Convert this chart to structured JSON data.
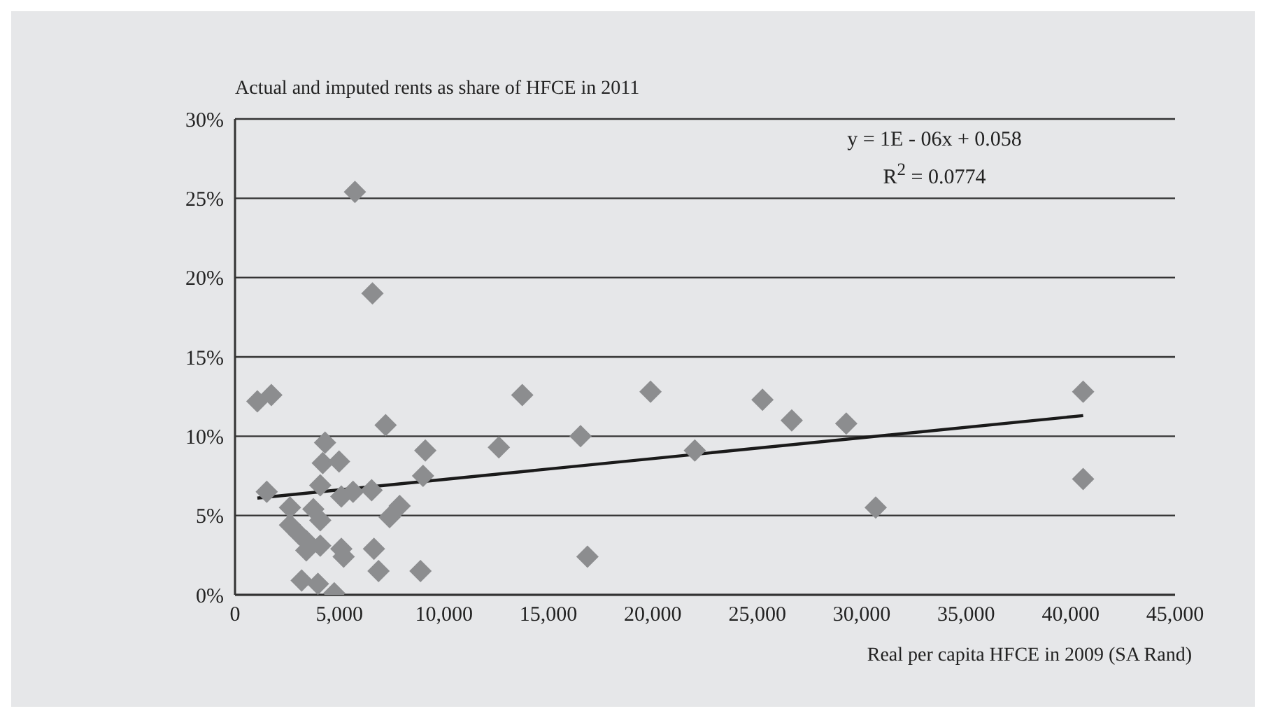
{
  "chart_data": {
    "type": "scatter",
    "title": "Actual and imputed rents as share of HFCE in 2011",
    "xlabel": "Real per capita HFCE in 2009 (SA Rand)",
    "annotations": [
      "y = 1E - 06x + 0.058",
      "R$^{2}$ = 0.0774"
    ],
    "marker": "diamond",
    "grid": "y",
    "xlim": [
      0,
      45000
    ],
    "xticks": [
      0,
      {
        "value": 5000,
        "label": "5,000"
      },
      {
        "value": 10000,
        "label": "10,000"
      },
      {
        "value": 15000,
        "label": "15,000"
      },
      {
        "value": 20000,
        "label": "20,000"
      },
      {
        "value": 25000,
        "label": "25,000"
      },
      {
        "value": 30000,
        "label": "30,000"
      },
      {
        "value": 35000,
        "label": "35,000"
      },
      {
        "value": 40000,
        "label": "40,000"
      },
      {
        "value": 45000,
        "label": "45,000"
      }
    ],
    "ylim": [
      0,
      30
    ],
    "yticks": [
      {
        "value": 0,
        "label": "0%"
      },
      {
        "value": 5,
        "label": "5%"
      },
      {
        "value": 10,
        "label": "10%"
      },
      {
        "value": 15,
        "label": "15%"
      },
      {
        "value": 20,
        "label": "20%"
      },
      {
        "value": 25,
        "label": "25%"
      },
      {
        "value": 30,
        "label": "30%"
      }
    ],
    "series": [
      {
        "color": "#8c8d8f",
        "x": [
          1070,
          1740,
          1520,
          4310,
          4200,
          4980,
          4080,
          2630,
          5090,
          5650,
          6540,
          7210,
          9110,
          9000,
          7400,
          7880,
          3750,
          2630,
          3080,
          3410,
          4080,
          4080,
          5090,
          5200,
          3410,
          6650,
          6870,
          8880,
          3190,
          3970,
          4750,
          13750,
          12630,
          16540,
          16870,
          19890,
          22010,
          25250,
          26650,
          29260,
          30670,
          40600,
          40600,
          5740,
          6580
        ],
        "values": [
          12.2,
          12.6,
          6.5,
          9.6,
          8.3,
          8.4,
          6.9,
          5.5,
          6.2,
          6.5,
          6.6,
          10.7,
          9.1,
          7.5,
          4.9,
          5.6,
          5.4,
          4.4,
          3.8,
          3.4,
          4.7,
          3.1,
          2.9,
          2.4,
          2.8,
          2.9,
          1.5,
          1.5,
          0.9,
          0.7,
          0.1,
          12.6,
          9.3,
          10.0,
          2.4,
          12.8,
          9.1,
          12.3,
          11.0,
          10.8,
          5.5,
          12.8,
          7.3,
          25.4,
          19.0
        ]
      },
      {
        "type": "line",
        "marker": "none",
        "color": "#1a1a1a",
        "x": [
          1070,
          40600
        ],
        "values": [
          6.1,
          11.3
        ]
      }
    ]
  }
}
